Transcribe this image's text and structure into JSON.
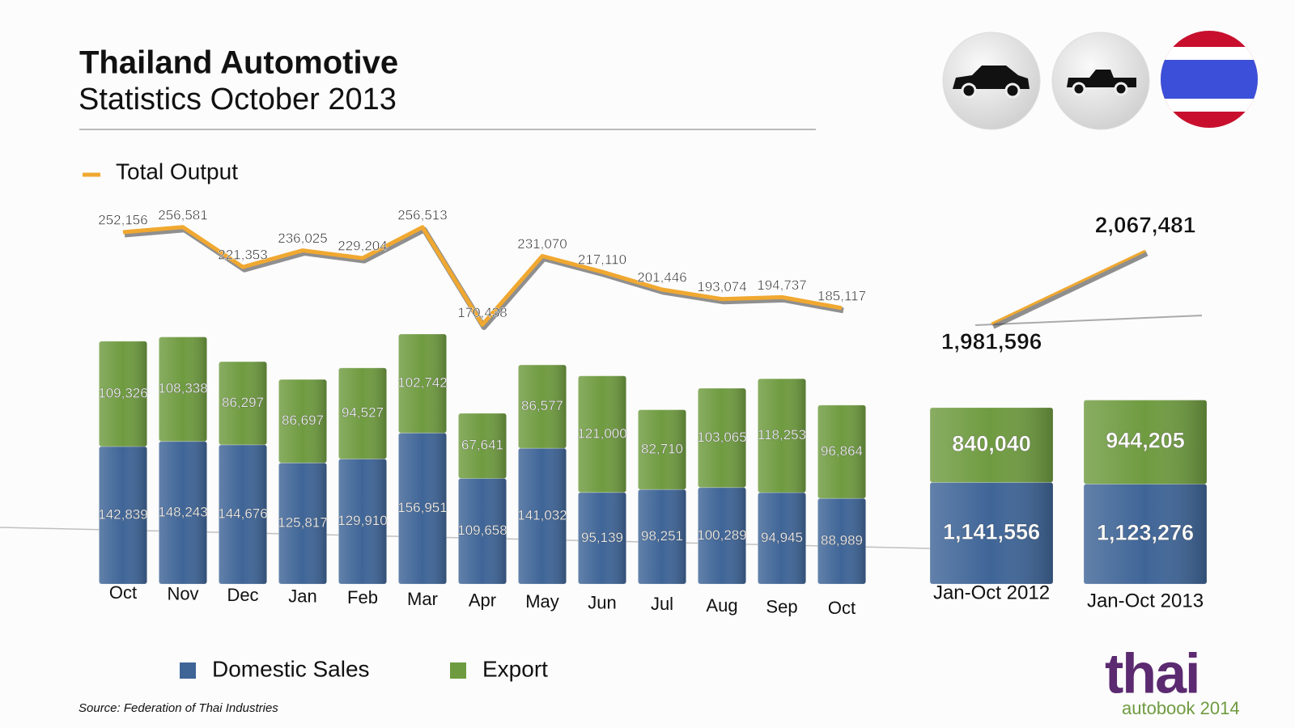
{
  "title": "Thailand Automotive",
  "subtitle": "Statistics October 2013",
  "source": "Source: Federation of Thai Industries",
  "logo": {
    "main": "thai",
    "sub": "autobook 2014"
  },
  "chart_data": [
    {
      "type": "bar",
      "stacked": true,
      "categories": [
        "Oct",
        "Nov",
        "Dec",
        "Jan",
        "Feb",
        "Mar",
        "Apr",
        "May",
        "Jun",
        "Jul",
        "Aug",
        "Sep",
        "Oct"
      ],
      "series": [
        {
          "name": "Domestic Sales",
          "color": "#3f6597",
          "values": [
            142839,
            148243,
            144676,
            125817,
            129910,
            156951,
            109658,
            141032,
            95139,
            98251,
            100289,
            94945,
            88989
          ],
          "value_labels": [
            "142,839",
            "148,243",
            "144,676",
            "125,817",
            "129,910",
            "156,951",
            "109,658",
            "141,032",
            "95,139",
            "98,251",
            "100,289",
            "94,945",
            "88,989"
          ]
        },
        {
          "name": "Export",
          "color": "#6f9b40",
          "values": [
            109326,
            108338,
            86297,
            86697,
            94527,
            102742,
            67641,
            86577,
            121000,
            82710,
            103065,
            118253,
            96864
          ],
          "value_labels": [
            "109,326",
            "108,338",
            "86,297",
            "86,697",
            "94,527",
            "102,742",
            "67,641",
            "86,577",
            "121,000",
            "82,710",
            "103,065",
            "118,253",
            "96,864"
          ]
        },
        {
          "name": "Total Output",
          "type": "line",
          "color": "#f0a830",
          "values": [
            252156,
            256581,
            221353,
            236025,
            229204,
            256513,
            170438,
            231070,
            217110,
            201446,
            193074,
            194737,
            185117
          ],
          "value_labels": [
            "252,156",
            "256,581",
            "221,353",
            "236,025",
            "229,204",
            "256,513",
            "170,438",
            "231,070",
            "217,110",
            "201,446",
            "193,074",
            "194,737",
            "185,117"
          ]
        }
      ]
    },
    {
      "type": "bar",
      "stacked": true,
      "categories": [
        "Jan-Oct 2012",
        "Jan-Oct 2013"
      ],
      "series": [
        {
          "color": "#3f6597",
          "values": [
            1141556,
            1123276
          ],
          "value_labels": [
            "1,141,556",
            "1,123,276"
          ]
        },
        {
          "color": "#6f9b40",
          "values": [
            840040,
            944205
          ],
          "value_labels": [
            "840,040",
            "944,205"
          ]
        },
        {
          "type": "line",
          "color": "#f0a830",
          "values": [
            1981596,
            2067481
          ],
          "value_labels": [
            "1,981,596",
            "2,067,481"
          ]
        }
      ]
    }
  ]
}
